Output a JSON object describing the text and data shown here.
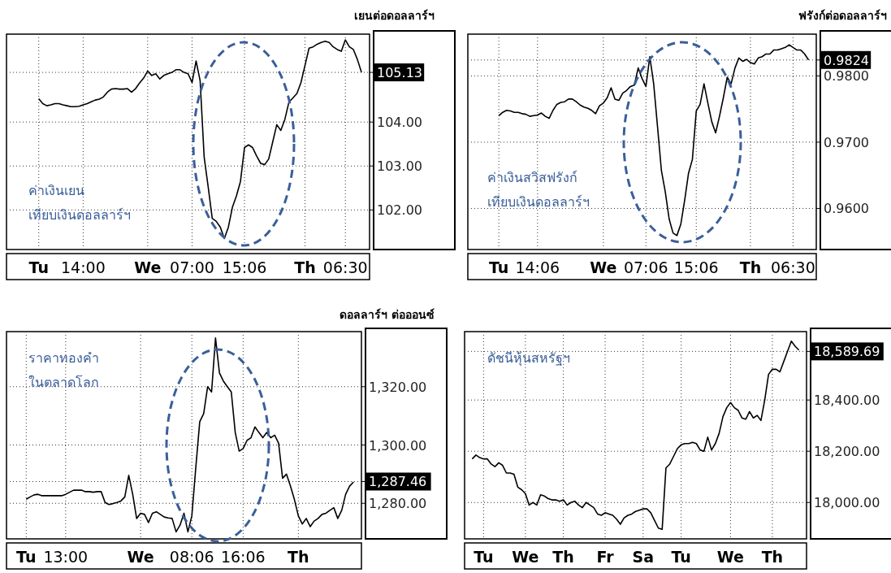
{
  "chart_data": [
    {
      "type": "line",
      "title": "เยนต่อดอลลาร์ฯ",
      "annotations": [
        "ค่าเงินเยน\nเทียบเงินดอลลาร์ฯ"
      ],
      "grid": true,
      "ylim": [
        101.1,
        106.0
      ],
      "yticks": [
        {
          "value": 102,
          "label": "102.00"
        },
        {
          "value": 103,
          "label": "103.00"
        },
        {
          "value": 104,
          "label": "104.00"
        },
        105.13
      ],
      "categories": [
        null,
        null,
        null,
        null,
        null,
        null,
        null,
        null,
        "Tu",
        null,
        null,
        null,
        null,
        null,
        null,
        null,
        null,
        null,
        null,
        "14:00",
        null,
        null,
        null,
        null,
        null,
        null,
        null,
        null,
        null,
        null,
        null,
        null,
        null,
        null,
        null,
        "We",
        null,
        null,
        null,
        null,
        null,
        null,
        null,
        null,
        null,
        null,
        "07:00",
        null,
        null,
        null,
        null,
        null,
        null,
        null,
        null,
        null,
        null,
        null,
        null,
        "15:06",
        null,
        null,
        null,
        null,
        null,
        null,
        null,
        null,
        null,
        null,
        null,
        null,
        null,
        null,
        "Th",
        null,
        null,
        null,
        null,
        null,
        null,
        null,
        null,
        null,
        "06:30",
        null,
        null,
        null,
        null,
        null,
        null
      ],
      "series": [
        {
          "color": "#000000",
          "values": [
            null,
            null,
            null,
            null,
            null,
            null,
            null,
            null,
            104.53,
            104.42,
            104.37,
            104.39,
            104.42,
            104.42,
            104.39,
            104.37,
            104.35,
            104.35,
            104.36,
            104.39,
            104.42,
            104.46,
            104.5,
            104.52,
            104.57,
            104.68,
            104.75,
            104.76,
            104.75,
            104.75,
            104.76,
            104.68,
            104.76,
            104.89,
            105.0,
            105.16,
            105.06,
            105.1,
            104.98,
            105.06,
            105.1,
            105.13,
            105.19,
            105.19,
            105.13,
            105.1,
            104.9,
            105.39,
            104.94,
            103.2,
            102.52,
            101.81,
            101.74,
            101.61,
            101.35,
            101.61,
            102.06,
            102.32,
            102.65,
            103.42,
            103.48,
            103.42,
            103.23,
            103.06,
            103.03,
            103.16,
            103.55,
            103.94,
            103.81,
            104.06,
            104.45,
            104.55,
            104.65,
            104.9,
            105.29,
            105.68,
            105.71,
            105.77,
            105.81,
            105.84,
            105.81,
            105.71,
            105.65,
            105.61,
            105.87,
            105.71,
            105.65,
            105.42,
            105.13,
            null,
            null
          ]
        }
      ]
    },
    {
      "type": "line",
      "title": "ฟรังก์ต่อดอลลาร์ฯ",
      "annotations": [
        "ค่าเงินสวิสฟรังก์\nเทียบเงินดอลลาร์ฯ"
      ],
      "grid": true,
      "ylim": [
        0.9538,
        0.9863
      ],
      "yticks": [
        {
          "value": 0.96,
          "label": "0.9600"
        },
        {
          "value": 0.97,
          "label": "0.9700"
        },
        {
          "value": 0.98,
          "label": "0.9800"
        },
        0.9824
      ],
      "categories": [
        null,
        null,
        null,
        null,
        null,
        null,
        null,
        null,
        "Tu",
        null,
        null,
        null,
        null,
        null,
        null,
        null,
        null,
        null,
        "14:06",
        null,
        null,
        null,
        null,
        null,
        null,
        null,
        null,
        null,
        null,
        null,
        null,
        null,
        null,
        null,
        null,
        "We",
        null,
        null,
        null,
        null,
        null,
        null,
        null,
        null,
        null,
        null,
        "07:06",
        null,
        null,
        null,
        null,
        null,
        null,
        null,
        null,
        null,
        null,
        null,
        null,
        "15:06",
        null,
        null,
        null,
        null,
        null,
        null,
        null,
        null,
        null,
        null,
        null,
        null,
        null,
        "Th",
        null,
        null,
        null,
        null,
        null,
        null,
        null,
        null,
        null,
        null,
        "06:30",
        null,
        null,
        null,
        null,
        null,
        null
      ],
      "series": [
        {
          "color": "#000000",
          "values": [
            null,
            null,
            null,
            null,
            null,
            null,
            null,
            null,
            0.974,
            0.9745,
            0.9748,
            0.9747,
            0.9745,
            0.9745,
            0.9743,
            0.9742,
            0.9739,
            0.974,
            0.9741,
            0.9744,
            0.9739,
            0.9736,
            0.9748,
            0.9757,
            0.976,
            0.9761,
            0.9765,
            0.9765,
            0.9761,
            0.9756,
            0.9753,
            0.9751,
            0.9748,
            0.9743,
            0.9755,
            0.9759,
            0.9767,
            0.9782,
            0.9765,
            0.9763,
            0.9774,
            0.9778,
            0.9784,
            0.9786,
            0.9812,
            0.9796,
            0.9784,
            0.9829,
            0.9788,
            0.9723,
            0.9657,
            0.9625,
            0.9584,
            0.9563,
            0.9559,
            0.9576,
            0.9612,
            0.9653,
            0.9674,
            0.9747,
            0.9757,
            0.9788,
            0.9759,
            0.9731,
            0.9714,
            0.9739,
            0.9767,
            0.9798,
            0.9788,
            0.9812,
            0.9827,
            0.9822,
            0.9825,
            0.982,
            0.9818,
            0.9827,
            0.9829,
            0.9833,
            0.9833,
            0.9839,
            0.9839,
            0.9841,
            0.9843,
            0.9847,
            0.9843,
            0.9839,
            0.9839,
            0.9833,
            0.9824,
            null,
            null
          ]
        }
      ]
    },
    {
      "type": "line",
      "title": "ดอลลาร์ฯ ต่อออนซ์",
      "annotations": [
        "ราคาทองคำ\nในตลาดโลก"
      ],
      "grid": true,
      "ylim": [
        1267.8,
        1338.9
      ],
      "yticks": [
        {
          "value": 1280,
          "label": "1,280.00"
        },
        {
          "value": 1300,
          "label": "1,300.00"
        },
        {
          "value": 1320,
          "label": "1,320.00"
        },
        {
          "value": 1287.46,
          "label": "1,287.46"
        }
      ],
      "categories": [
        null,
        null,
        null,
        null,
        null,
        "Tu",
        null,
        null,
        null,
        null,
        null,
        null,
        null,
        null,
        null,
        "13:00",
        null,
        null,
        null,
        null,
        null,
        null,
        null,
        null,
        null,
        null,
        null,
        null,
        null,
        null,
        null,
        null,
        null,
        null,
        "We",
        null,
        null,
        null,
        null,
        null,
        null,
        null,
        null,
        null,
        null,
        null,
        null,
        "08:06",
        null,
        null,
        null,
        null,
        null,
        null,
        null,
        null,
        null,
        null,
        null,
        null,
        "16:06",
        null,
        null,
        null,
        null,
        null,
        null,
        null,
        null,
        null,
        null,
        null,
        null,
        null,
        "Th",
        null,
        null,
        null,
        null,
        null,
        null,
        null,
        null,
        null,
        null,
        null,
        null,
        null,
        null,
        null,
        null
      ],
      "series": [
        {
          "color": "#000000",
          "values": [
            null,
            null,
            null,
            null,
            null,
            1281.4,
            1282.2,
            1282.9,
            1283.1,
            1282.6,
            1282.6,
            1282.6,
            1282.6,
            1282.6,
            1282.6,
            1283.1,
            1283.8,
            1284.5,
            1284.5,
            1284.5,
            1284,
            1284,
            1283.8,
            1284,
            1284,
            1280.3,
            1279.6,
            1279.9,
            1280.3,
            1280.8,
            1282.2,
            1289.6,
            1283.1,
            1274.8,
            1276.6,
            1276.2,
            1273.4,
            1276.6,
            1277.1,
            1276.2,
            1275.3,
            1275,
            1274.8,
            1270.2,
            1272.5,
            1276.6,
            1270.2,
            1275.7,
            1292.3,
            1308,
            1310.8,
            1320,
            1318.2,
            1336.7,
            1324.7,
            1321.9,
            1320,
            1318.2,
            1304.3,
            1297.9,
            1298.8,
            1301.6,
            1302.5,
            1306.2,
            1304.3,
            1302.5,
            1304.3,
            1302.5,
            1303.4,
            1300.6,
            1288.6,
            1290,
            1285.9,
            1281.3,
            1275.7,
            1272.9,
            1274.8,
            1272,
            1273.9,
            1274.8,
            1276.2,
            1276.6,
            1277.6,
            1278.5,
            1274.8,
            1277.6,
            1283.1,
            1285.9,
            1287.3,
            null,
            null
          ]
        }
      ]
    },
    {
      "type": "line",
      "annotations": [
        "ดัชนีหุ้นสหรัฐฯ"
      ],
      "grid": true,
      "ylim": [
        17858,
        18667
      ],
      "yticks": [
        {
          "value": 18000,
          "label": "18,000.00"
        },
        {
          "value": 18200,
          "label": "18,200.00"
        },
        {
          "value": 18400,
          "label": "18,400.00"
        },
        {
          "value": 18589.69,
          "label": "18,589.69"
        }
      ],
      "categories": [
        null,
        null,
        null,
        null,
        null,
        "Tu",
        null,
        null,
        null,
        null,
        null,
        null,
        null,
        null,
        null,
        null,
        "We",
        null,
        null,
        null,
        null,
        null,
        null,
        null,
        null,
        null,
        "Th",
        null,
        null,
        null,
        null,
        null,
        null,
        null,
        null,
        null,
        null,
        "Fr",
        null,
        null,
        null,
        null,
        null,
        null,
        null,
        null,
        null,
        "Sa",
        null,
        null,
        null,
        null,
        null,
        null,
        null,
        null,
        null,
        "Tu",
        null,
        null,
        null,
        null,
        null,
        null,
        null,
        null,
        null,
        null,
        null,
        null,
        "We",
        null,
        null,
        null,
        null,
        null,
        null,
        null,
        null,
        null,
        null,
        "Th",
        null,
        null,
        null,
        null,
        null,
        null,
        null,
        null,
        null
      ],
      "series": [
        {
          "color": "#000000",
          "values": [
            null,
            null,
            18170,
            18185,
            18175,
            18170,
            18170,
            18150,
            18140,
            18155,
            18145,
            18115,
            18115,
            18110,
            18060,
            18050,
            18035,
            17990,
            18000,
            17990,
            18030,
            18025,
            18015,
            18010,
            18010,
            18005,
            18010,
            17990,
            18000,
            18005,
            17990,
            17980,
            18000,
            17990,
            17980,
            17955,
            17950,
            17960,
            17955,
            17950,
            17935,
            17915,
            17940,
            17950,
            17955,
            17965,
            17970,
            17975,
            17975,
            17960,
            17930,
            17900,
            17895,
            18135,
            18150,
            18180,
            18210,
            18225,
            18230,
            18230,
            18235,
            18230,
            18205,
            18200,
            18255,
            18205,
            18230,
            18270,
            18335,
            18370,
            18390,
            18370,
            18360,
            18330,
            18325,
            18355,
            18330,
            18340,
            18320,
            18400,
            18500,
            18520,
            18520,
            18510,
            18550,
            18590,
            18630,
            18610,
            18595,
            null,
            null
          ]
        }
      ]
    }
  ]
}
